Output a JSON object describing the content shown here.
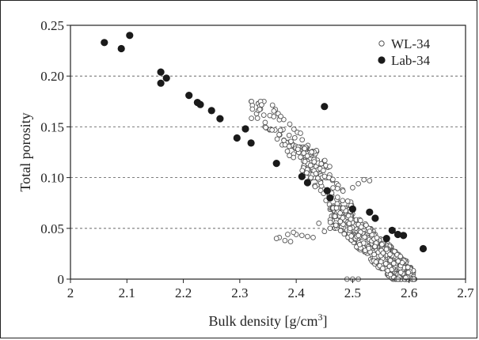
{
  "chart_data": {
    "type": "scatter",
    "xlabel": "Bulk density [g/cm",
    "xlabel_sup": "3",
    "xlabel_end": "]",
    "ylabel": "Total porosity",
    "xlim": [
      2.0,
      2.7
    ],
    "ylim": [
      0,
      0.25
    ],
    "xticks": [
      "2",
      "2.1",
      "2.2",
      "2.3",
      "2.4",
      "2.5",
      "2.6",
      "2.7"
    ],
    "xtick_values": [
      2.0,
      2.1,
      2.2,
      2.3,
      2.4,
      2.5,
      2.6,
      2.7
    ],
    "yticks": [
      "0",
      "0.05",
      "0.10",
      "0.15",
      "0.20",
      "0.25"
    ],
    "ytick_values": [
      0,
      0.05,
      0.1,
      0.15,
      0.2,
      0.25
    ],
    "grid": "horizontal dashed",
    "legend_position": "top-right",
    "series": [
      {
        "name": "WL-34",
        "marker": "open-circle",
        "color": "#555555",
        "clusters": [
          {
            "x_range": [
              2.32,
              2.46
            ],
            "y_range": [
              0.1,
              0.175
            ],
            "count": 120
          },
          {
            "x_range": [
              2.4,
              2.5
            ],
            "y_range": [
              0.06,
              0.13
            ],
            "count": 110
          },
          {
            "x_range": [
              2.46,
              2.6
            ],
            "y_range": [
              0.0,
              0.07
            ],
            "count": 450
          },
          {
            "x_range": [
              2.55,
              2.61
            ],
            "y_range": [
              0.0,
              0.035
            ],
            "count": 140
          }
        ],
        "points": [
          [
            2.37,
            0.041
          ],
          [
            2.365,
            0.04
          ],
          [
            2.38,
            0.038
          ],
          [
            2.39,
            0.037
          ],
          [
            2.4,
            0.044
          ],
          [
            2.41,
            0.043
          ],
          [
            2.42,
            0.042
          ],
          [
            2.43,
            0.041
          ],
          [
            2.385,
            0.044
          ],
          [
            2.395,
            0.046
          ],
          [
            2.49,
            0.0
          ],
          [
            2.5,
            0.0
          ],
          [
            2.51,
            0.0
          ],
          [
            2.52,
            0.098
          ],
          [
            2.53,
            0.097
          ],
          [
            2.51,
            0.094
          ],
          [
            2.5,
            0.09
          ],
          [
            2.45,
            0.047
          ],
          [
            2.46,
            0.05
          ],
          [
            2.44,
            0.055
          ]
        ]
      },
      {
        "name": "Lab-34",
        "marker": "filled-circle",
        "color": "#1a1a1a",
        "points": [
          [
            2.06,
            0.233
          ],
          [
            2.09,
            0.227
          ],
          [
            2.105,
            0.24
          ],
          [
            2.16,
            0.204
          ],
          [
            2.16,
            0.193
          ],
          [
            2.17,
            0.198
          ],
          [
            2.21,
            0.181
          ],
          [
            2.225,
            0.174
          ],
          [
            2.23,
            0.172
          ],
          [
            2.25,
            0.166
          ],
          [
            2.265,
            0.158
          ],
          [
            2.295,
            0.139
          ],
          [
            2.31,
            0.148
          ],
          [
            2.32,
            0.134
          ],
          [
            2.365,
            0.114
          ],
          [
            2.41,
            0.101
          ],
          [
            2.42,
            0.095
          ],
          [
            2.45,
            0.17
          ],
          [
            2.455,
            0.087
          ],
          [
            2.46,
            0.08
          ],
          [
            2.5,
            0.069
          ],
          [
            2.53,
            0.066
          ],
          [
            2.54,
            0.06
          ],
          [
            2.56,
            0.04
          ],
          [
            2.57,
            0.048
          ],
          [
            2.58,
            0.044
          ],
          [
            2.59,
            0.043
          ],
          [
            2.625,
            0.03
          ]
        ]
      }
    ]
  }
}
